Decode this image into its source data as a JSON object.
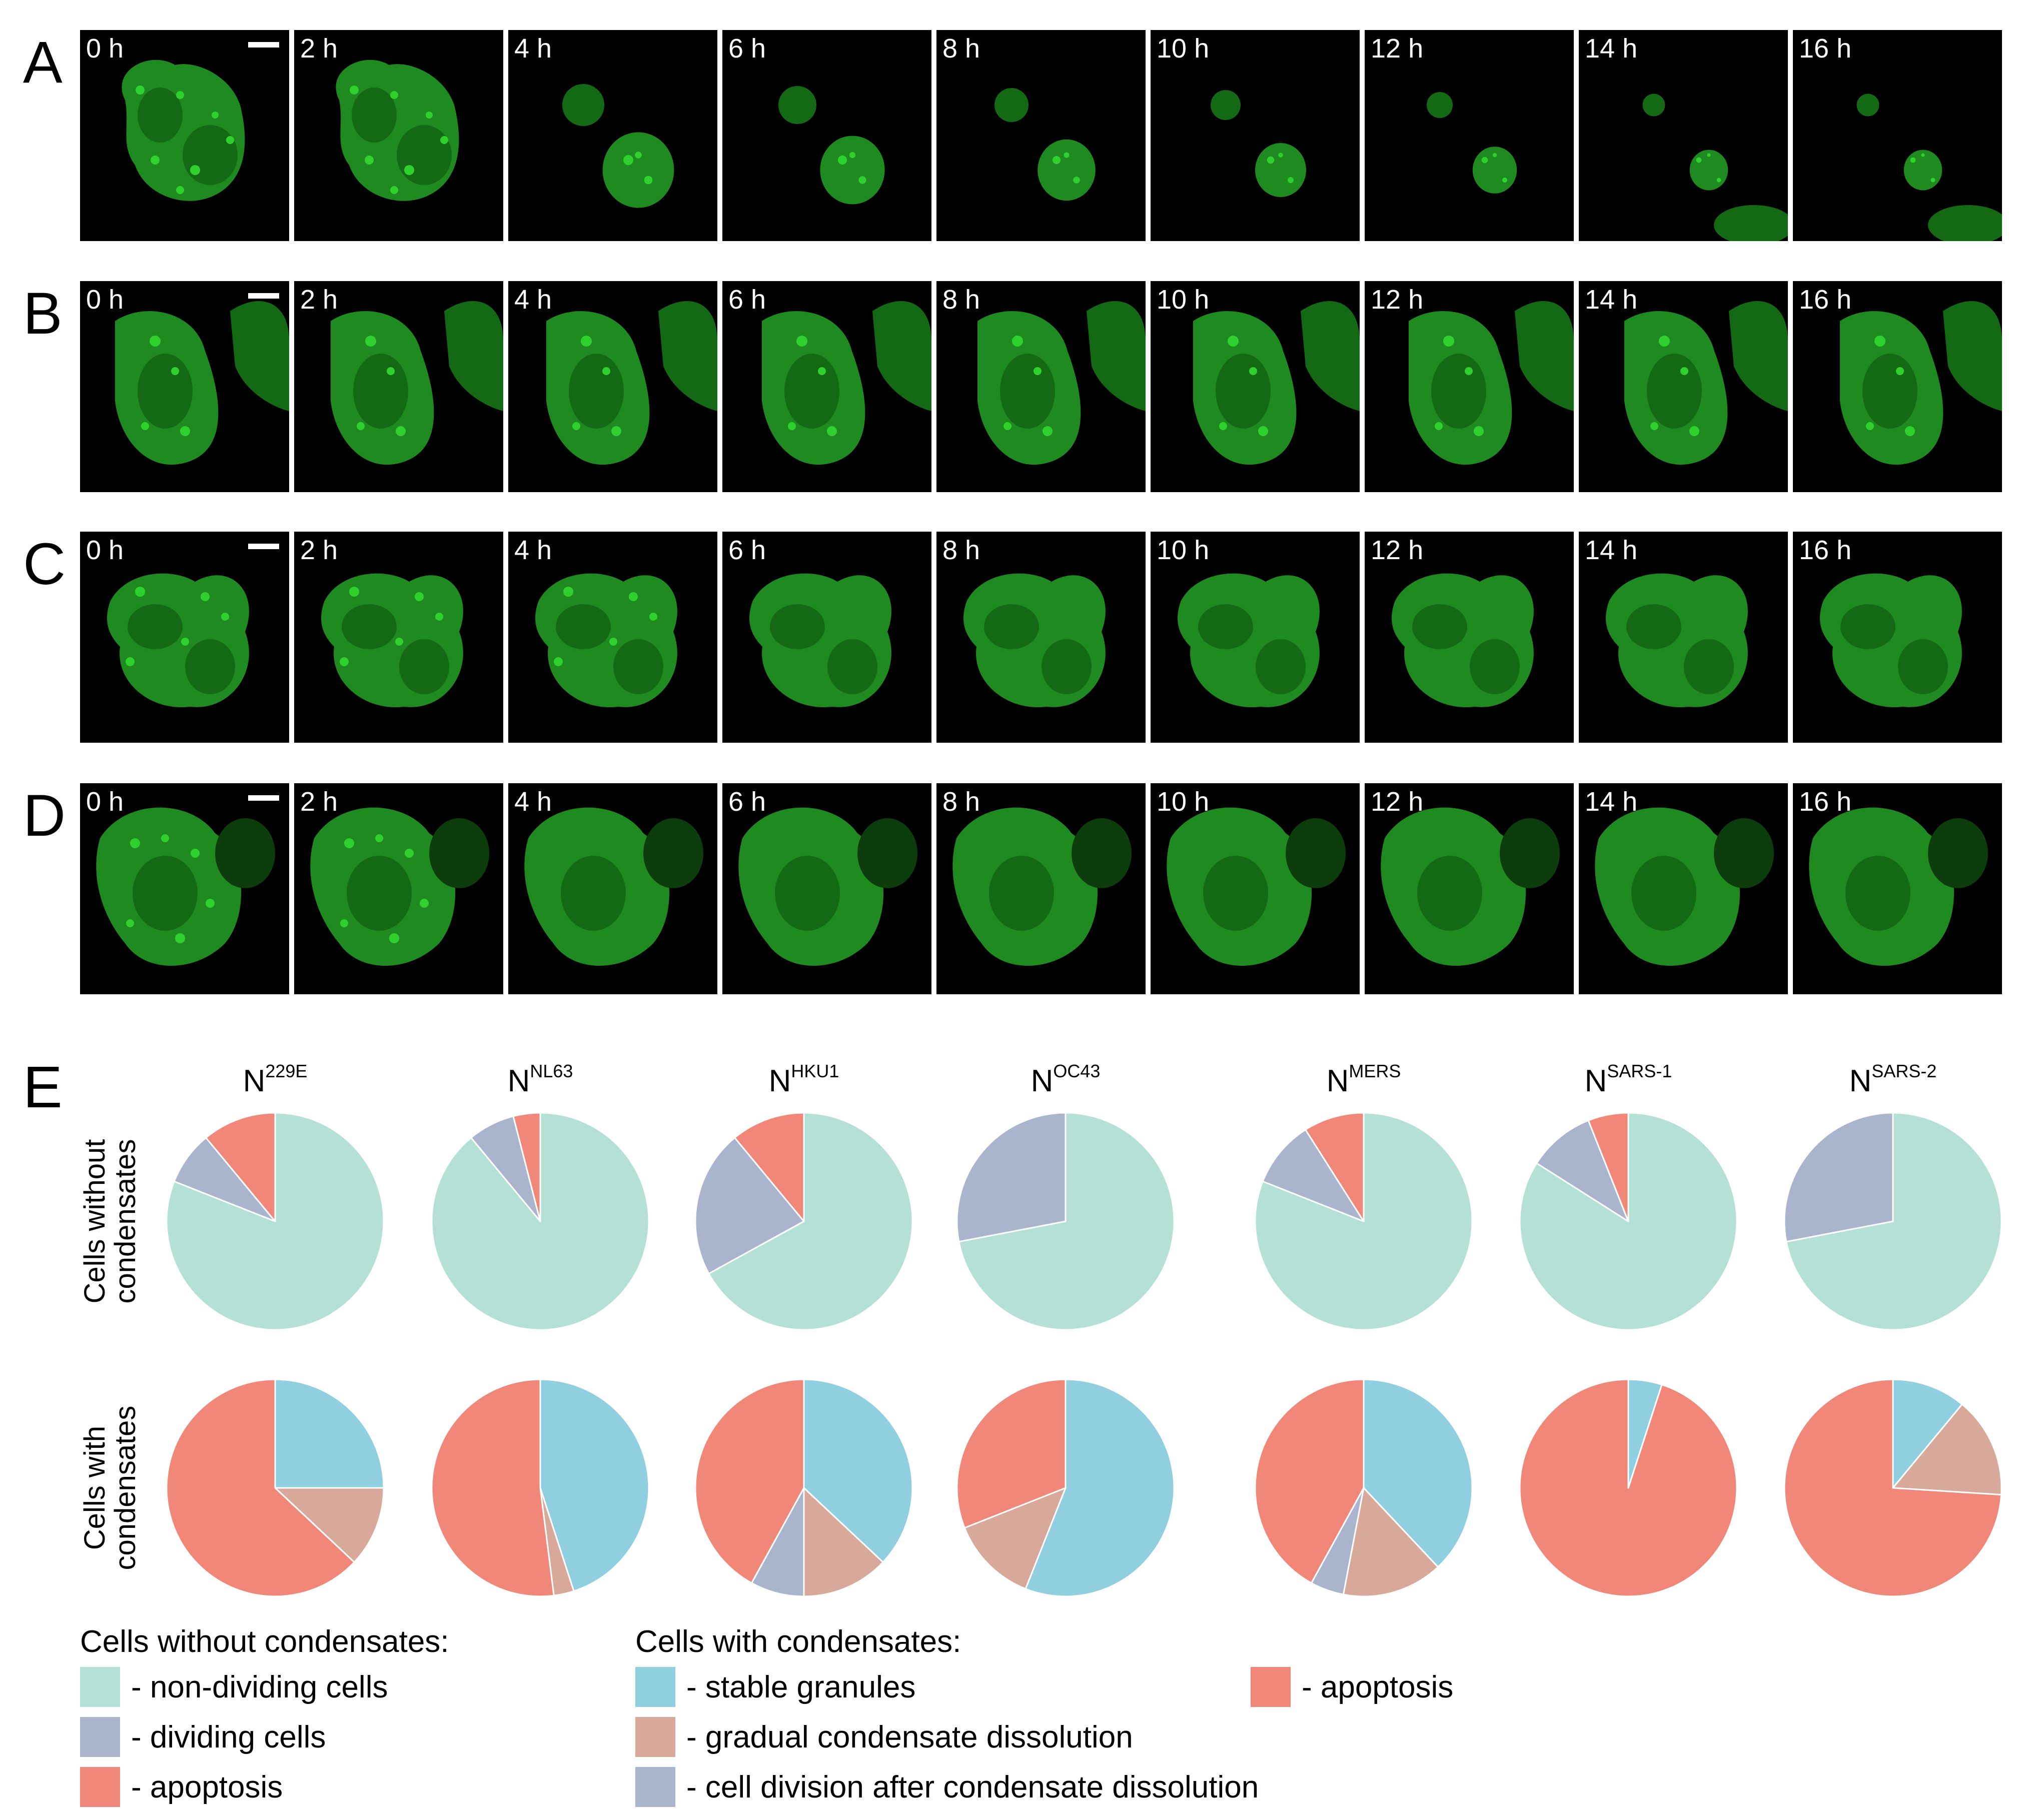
{
  "panels": [
    {
      "letter": "A",
      "times": [
        "0 h",
        "2 h",
        "4 h",
        "6 h",
        "8 h",
        "10 h",
        "12 h",
        "14 h",
        "16 h"
      ]
    },
    {
      "letter": "B",
      "times": [
        "0 h",
        "2 h",
        "4 h",
        "6 h",
        "8 h",
        "10 h",
        "12 h",
        "14 h",
        "16 h"
      ]
    },
    {
      "letter": "C",
      "times": [
        "0 h",
        "2 h",
        "4 h",
        "6 h",
        "8 h",
        "10 h",
        "12 h",
        "14 h",
        "16 h"
      ]
    },
    {
      "letter": "D",
      "times": [
        "0 h",
        "2 h",
        "4 h",
        "6 h",
        "8 h",
        "10 h",
        "12 h",
        "14 h",
        "16 h"
      ]
    }
  ],
  "panel_e": {
    "letter": "E",
    "row_labels": [
      [
        "Cells without",
        "condensates"
      ],
      [
        "Cells with",
        "condensates"
      ]
    ]
  },
  "colors": {
    "non_dividing": "#b5e0d5",
    "dividing": "#aab4cc",
    "apoptosis": "#f08778",
    "stable": "#8fcfe0",
    "gradual": "#d8a89b",
    "division_after": "#aab4cc"
  },
  "chart_data": {
    "type": "pie",
    "proteins": [
      {
        "name": "N",
        "sup": "229E",
        "without": [
          {
            "cat": "non_dividing",
            "value": 81
          },
          {
            "cat": "dividing",
            "value": 8
          },
          {
            "cat": "apoptosis",
            "value": 11
          }
        ],
        "with": [
          {
            "cat": "stable",
            "value": 25
          },
          {
            "cat": "gradual",
            "value": 12
          },
          {
            "cat": "division_after",
            "value": 0
          },
          {
            "cat": "apoptosis",
            "value": 63
          }
        ]
      },
      {
        "name": "N",
        "sup": "NL63",
        "without": [
          {
            "cat": "non_dividing",
            "value": 89
          },
          {
            "cat": "dividing",
            "value": 7
          },
          {
            "cat": "apoptosis",
            "value": 4
          }
        ],
        "with": [
          {
            "cat": "stable",
            "value": 45
          },
          {
            "cat": "gradual",
            "value": 3
          },
          {
            "cat": "division_after",
            "value": 0
          },
          {
            "cat": "apoptosis",
            "value": 52
          }
        ]
      },
      {
        "name": "N",
        "sup": "HKU1",
        "without": [
          {
            "cat": "non_dividing",
            "value": 67
          },
          {
            "cat": "dividing",
            "value": 22
          },
          {
            "cat": "apoptosis",
            "value": 11
          }
        ],
        "with": [
          {
            "cat": "stable",
            "value": 37
          },
          {
            "cat": "gradual",
            "value": 13
          },
          {
            "cat": "division_after",
            "value": 8
          },
          {
            "cat": "apoptosis",
            "value": 42
          }
        ]
      },
      {
        "name": "N",
        "sup": "OC43",
        "without": [
          {
            "cat": "non_dividing",
            "value": 72
          },
          {
            "cat": "dividing",
            "value": 28
          },
          {
            "cat": "apoptosis",
            "value": 0
          }
        ],
        "with": [
          {
            "cat": "stable",
            "value": 56
          },
          {
            "cat": "gradual",
            "value": 13
          },
          {
            "cat": "division_after",
            "value": 0
          },
          {
            "cat": "apoptosis",
            "value": 31
          }
        ]
      },
      {
        "name": "N",
        "sup": "MERS",
        "without": [
          {
            "cat": "non_dividing",
            "value": 81
          },
          {
            "cat": "dividing",
            "value": 10
          },
          {
            "cat": "apoptosis",
            "value": 9
          }
        ],
        "with": [
          {
            "cat": "stable",
            "value": 38
          },
          {
            "cat": "gradual",
            "value": 15
          },
          {
            "cat": "division_after",
            "value": 5
          },
          {
            "cat": "apoptosis",
            "value": 42
          }
        ]
      },
      {
        "name": "N",
        "sup": "SARS-1",
        "without": [
          {
            "cat": "non_dividing",
            "value": 84
          },
          {
            "cat": "dividing",
            "value": 10
          },
          {
            "cat": "apoptosis",
            "value": 6
          }
        ],
        "with": [
          {
            "cat": "stable",
            "value": 5
          },
          {
            "cat": "gradual",
            "value": 0
          },
          {
            "cat": "division_after",
            "value": 0
          },
          {
            "cat": "apoptosis",
            "value": 95
          }
        ]
      },
      {
        "name": "N",
        "sup": "SARS-2",
        "without": [
          {
            "cat": "non_dividing",
            "value": 72
          },
          {
            "cat": "dividing",
            "value": 28
          },
          {
            "cat": "apoptosis",
            "value": 0
          }
        ],
        "with": [
          {
            "cat": "stable",
            "value": 11
          },
          {
            "cat": "gradual",
            "value": 15
          },
          {
            "cat": "division_after",
            "value": 0
          },
          {
            "cat": "apoptosis",
            "value": 74
          }
        ]
      }
    ]
  },
  "legend": {
    "without_title": "Cells without condensates:",
    "without_items": [
      {
        "cat": "non_dividing",
        "label": "- non-dividing cells"
      },
      {
        "cat": "dividing",
        "label": "- dividing cells"
      },
      {
        "cat": "apoptosis",
        "label": "- apoptosis"
      }
    ],
    "with_title": "Cells with condensates:",
    "with_items": [
      {
        "cat": "stable",
        "label": "- stable granules"
      },
      {
        "cat": "gradual",
        "label": "- gradual condensate dissolution"
      },
      {
        "cat": "division_after",
        "label": "- cell division after condensate dissolution"
      },
      {
        "cat": "apoptosis",
        "label": "- apoptosis"
      }
    ]
  }
}
